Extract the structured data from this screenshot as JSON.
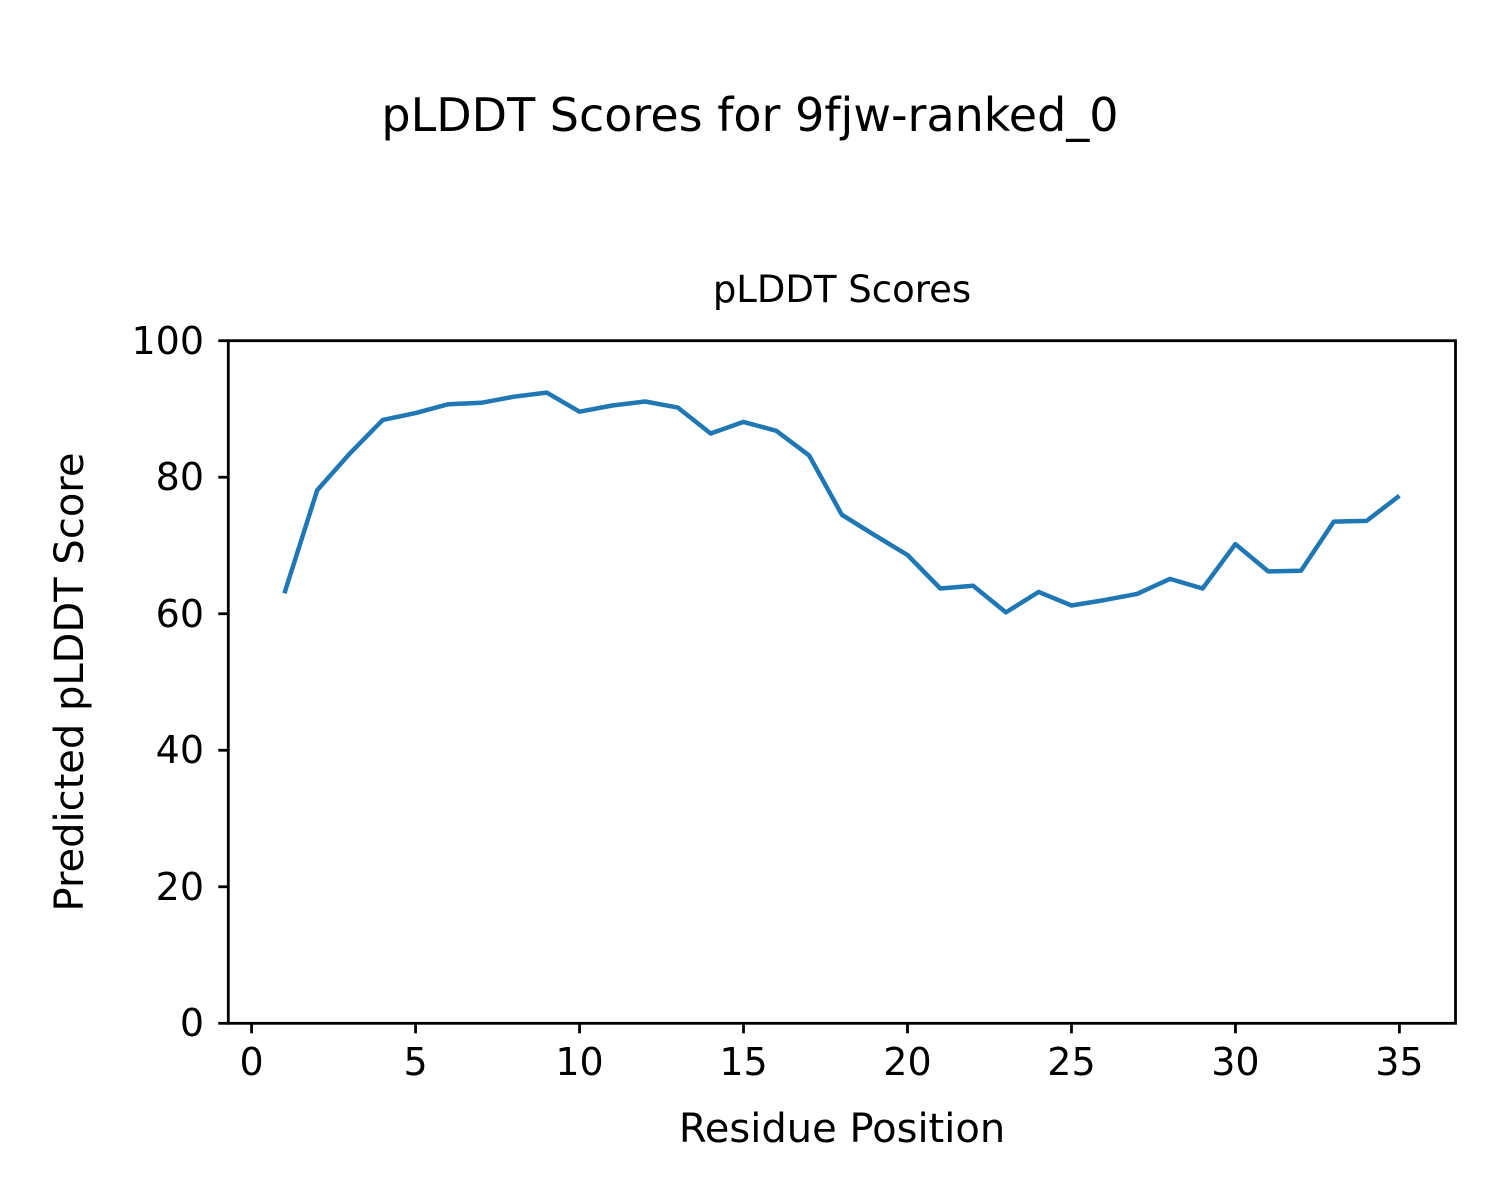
{
  "figure": {
    "title": "pLDDT Scores for 9fjw-ranked_0"
  },
  "chart_data": {
    "type": "line",
    "title": "pLDDT Scores",
    "xlabel": "Residue Position",
    "ylabel": "Predicted pLDDT Score",
    "x": [
      1,
      2,
      3,
      4,
      5,
      6,
      7,
      8,
      9,
      10,
      11,
      12,
      13,
      14,
      15,
      16,
      17,
      18,
      19,
      20,
      21,
      22,
      23,
      24,
      25,
      26,
      27,
      28,
      29,
      30,
      31,
      32,
      33,
      34,
      35
    ],
    "y": [
      63.0,
      78.1,
      83.5,
      88.4,
      89.4,
      90.7,
      90.9,
      91.8,
      92.4,
      89.6,
      90.5,
      91.1,
      90.2,
      86.4,
      88.1,
      86.8,
      83.2,
      74.5,
      71.5,
      68.6,
      63.7,
      64.1,
      60.2,
      63.2,
      61.2,
      62.0,
      62.9,
      65.1,
      63.7,
      70.2,
      66.2,
      66.3,
      73.5,
      73.6,
      77.3
    ],
    "xticks": [
      0,
      5,
      10,
      15,
      20,
      25,
      30,
      35
    ],
    "yticks": [
      0,
      20,
      40,
      60,
      80,
      100
    ],
    "xlim": [
      -0.71,
      36.71
    ],
    "ylim": [
      0,
      100
    ],
    "grid": false,
    "legend": "none",
    "line_color": "#1f77b4",
    "axis_color": "#000000"
  }
}
